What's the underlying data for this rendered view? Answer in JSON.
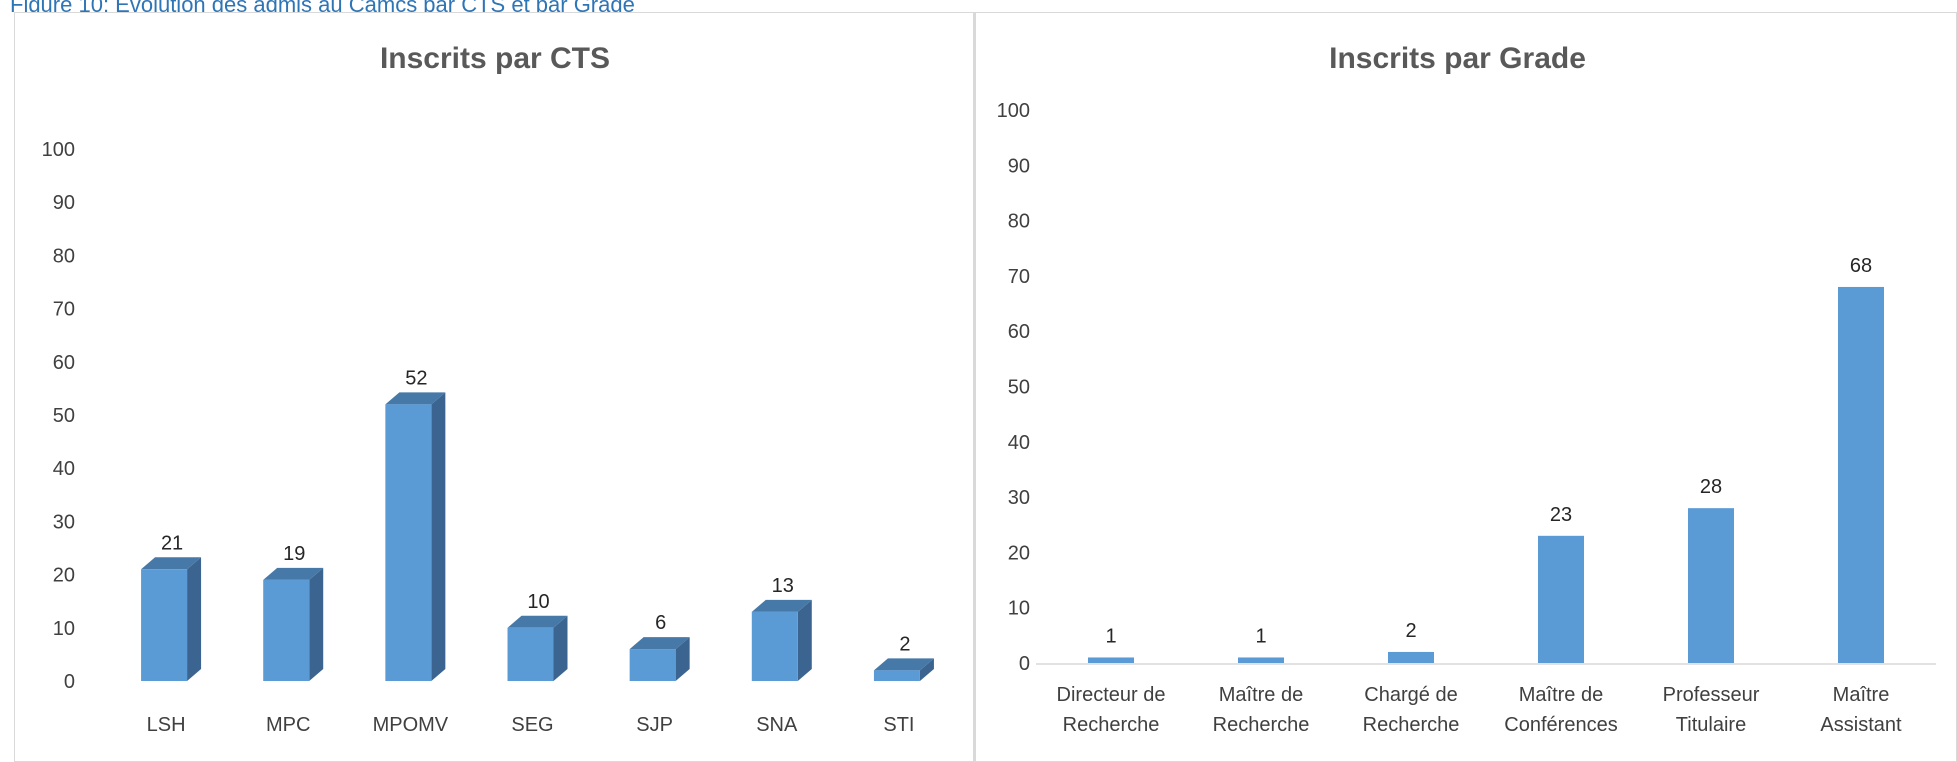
{
  "caption": "Figure 10: Evolution des admis au Camcs par CTS et par Grade",
  "colors": {
    "bar_front": "#5b9bd5",
    "bar_side": "#3b6590",
    "bar_top": "#4779a8"
  },
  "chart_data": [
    {
      "type": "bar",
      "title": "Inscrits par CTS",
      "categories": [
        "LSH",
        "MPC",
        "MPOMV",
        "SEG",
        "SJP",
        "SNA",
        "STI"
      ],
      "values": [
        21,
        19,
        52,
        10,
        6,
        13,
        2
      ],
      "ylim": [
        0,
        100
      ],
      "yticks": [
        0,
        10,
        20,
        30,
        40,
        50,
        60,
        70,
        80,
        90,
        100
      ],
      "style": "3d-column",
      "grid": false,
      "legend": "none"
    },
    {
      "type": "bar",
      "title": "Inscrits par Grade",
      "categories": [
        [
          "Directeur de",
          "Recherche"
        ],
        [
          "Maître de",
          "Recherche"
        ],
        [
          "Chargé de",
          "Recherche"
        ],
        [
          "Maître de",
          "Conférences"
        ],
        [
          "Professeur",
          "Titulaire"
        ],
        [
          "Maître",
          "Assistant"
        ]
      ],
      "values": [
        1,
        1,
        2,
        23,
        28,
        68
      ],
      "ylim": [
        0,
        100
      ],
      "yticks": [
        0,
        10,
        20,
        30,
        40,
        50,
        60,
        70,
        80,
        90,
        100
      ],
      "style": "2d-column",
      "grid": false,
      "legend": "none"
    }
  ]
}
